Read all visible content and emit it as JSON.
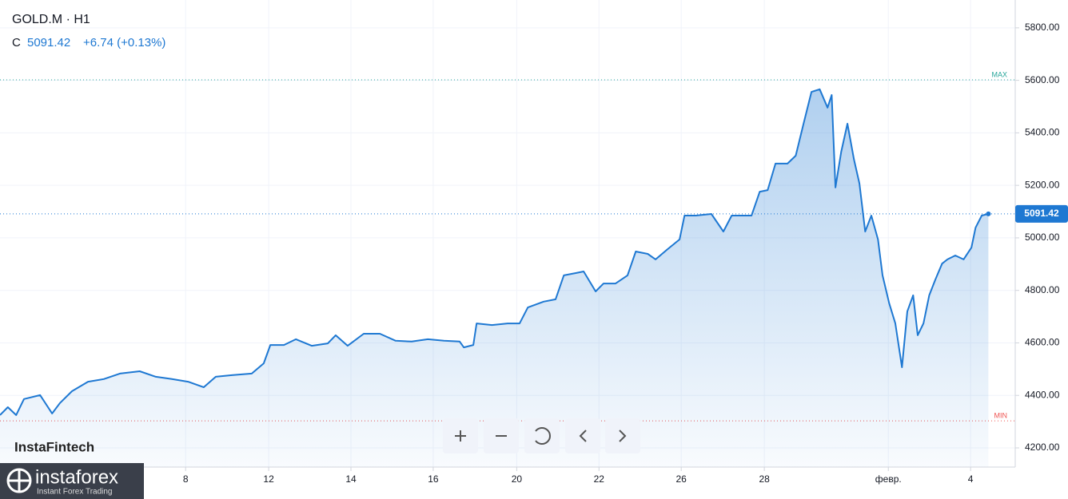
{
  "chart_data": {
    "type": "line",
    "title": "GOLD.M · H1",
    "price_prefix": "C",
    "change": "+6.74 (+0.13%)",
    "watermark": "InstaFintech",
    "logo": "instaforex",
    "logo_tagline": "Instant Forex Trading",
    "color": "#1e78d2",
    "x": [
      0,
      0.19,
      0.39,
      0.58,
      0.97,
      1.26,
      1.45,
      1.74,
      2.13,
      2.51,
      2.9,
      3.38,
      3.77,
      4.16,
      4.55,
      4.93,
      5.22,
      5.61,
      6.09,
      6.38,
      6.54,
      6.87,
      7.16,
      7.54,
      7.93,
      8.12,
      8.41,
      8.8,
      9.19,
      9.57,
      9.96,
      10.35,
      10.74,
      11.12,
      11.22,
      11.45,
      11.53,
      11.9,
      12.28,
      12.57,
      12.77,
      13.15,
      13.44,
      13.64,
      13.93,
      14.12,
      14.41,
      14.6,
      14.89,
      15.18,
      15.38,
      15.67,
      15.86,
      16.15,
      16.44,
      16.56,
      16.83,
      17.21,
      17.5,
      17.7,
      17.99,
      18.18,
      18.38,
      18.57,
      18.76,
      19.05,
      19.25,
      19.44,
      19.63,
      19.83,
      20.02,
      20.12,
      20.21,
      20.35,
      20.5,
      20.66,
      20.79,
      20.93,
      21.08,
      21.24,
      21.35,
      21.51,
      21.66,
      21.82,
      21.95,
      22.09,
      22.2,
      22.34,
      22.48,
      22.63,
      22.79,
      22.92,
      23.11,
      23.31,
      23.5,
      23.6,
      23.75,
      23.91
    ],
    "values": [
      4325,
      4355,
      4325,
      4386,
      4401,
      4331,
      4371,
      4416,
      4452,
      4462,
      4483,
      4492,
      4471,
      4462,
      4452,
      4431,
      4471,
      4477,
      4483,
      4522,
      4592,
      4592,
      4614,
      4589,
      4598,
      4629,
      4589,
      4635,
      4635,
      4608,
      4605,
      4614,
      4608,
      4605,
      4583,
      4592,
      4674,
      4668,
      4674,
      4674,
      4735,
      4757,
      4766,
      4857,
      4866,
      4872,
      4796,
      4826,
      4826,
      4857,
      4948,
      4939,
      4918,
      4957,
      4994,
      5085,
      5085,
      5091,
      5024,
      5085,
      5085,
      5085,
      5176,
      5182,
      5283,
      5283,
      5313,
      5435,
      5556,
      5566,
      5496,
      5544,
      5192,
      5328,
      5435,
      5298,
      5207,
      5024,
      5085,
      4994,
      4857,
      4751,
      4674,
      4507,
      4720,
      4781,
      4629,
      4674,
      4781,
      4842,
      4902,
      4918,
      4933,
      4918,
      4963,
      5039,
      5085,
      5091.42
    ],
    "xlim": [
      0,
      24.56
    ],
    "xticks": [
      {
        "value": 4.49,
        "label": "8"
      },
      {
        "value": 6.5,
        "label": "12"
      },
      {
        "value": 8.49,
        "label": "14"
      },
      {
        "value": 10.48,
        "label": "16"
      },
      {
        "value": 12.5,
        "label": "20"
      },
      {
        "value": 14.49,
        "label": "22"
      },
      {
        "value": 16.48,
        "label": "26"
      },
      {
        "value": 18.49,
        "label": "28"
      },
      {
        "value": 21.49,
        "label": "февр."
      },
      {
        "value": 23.48,
        "label": "4"
      }
    ],
    "ylim": [
      4127,
      5906
    ],
    "yticks": [
      {
        "value": 4200,
        "label": "4200.00"
      },
      {
        "value": 4400,
        "label": "4400.00"
      },
      {
        "value": 4600,
        "label": "4600.00"
      },
      {
        "value": 4800,
        "label": "4800.00"
      },
      {
        "value": 5000,
        "label": "5000.00"
      },
      {
        "value": 5200,
        "label": "5200.00"
      },
      {
        "value": 5400,
        "label": "5400.00"
      },
      {
        "value": 5600,
        "label": "5600.00"
      },
      {
        "value": 5800,
        "label": "5800.00"
      }
    ],
    "grid": true,
    "max_line": 5602,
    "max_label": "MAX",
    "min_line": 4303,
    "min_label": "MIN"
  }
}
